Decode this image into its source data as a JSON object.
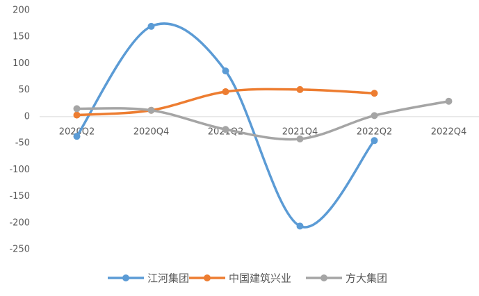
{
  "chart_data": {
    "type": "line",
    "smooth": true,
    "categories": [
      "2020Q2",
      "2020Q4",
      "2021Q2",
      "2021Q4",
      "2022Q2",
      "2022Q4"
    ],
    "series": [
      {
        "name": "江河集团",
        "color": "#5b9bd5",
        "values": [
          -37,
          170,
          86,
          -206,
          -45,
          null
        ]
      },
      {
        "name": "中国建筑兴业",
        "color": "#ed7d31",
        "values": [
          3,
          12,
          47,
          51,
          44,
          null
        ]
      },
      {
        "name": "方大集团",
        "color": "#a5a5a5",
        "values": [
          15,
          12,
          -24,
          -42,
          2,
          29
        ]
      }
    ],
    "ylim": [
      -250,
      200
    ],
    "yticks": [
      -250,
      -200,
      -150,
      -100,
      -50,
      0,
      50,
      100,
      150,
      200
    ],
    "grid": false,
    "legend": "bottom"
  }
}
